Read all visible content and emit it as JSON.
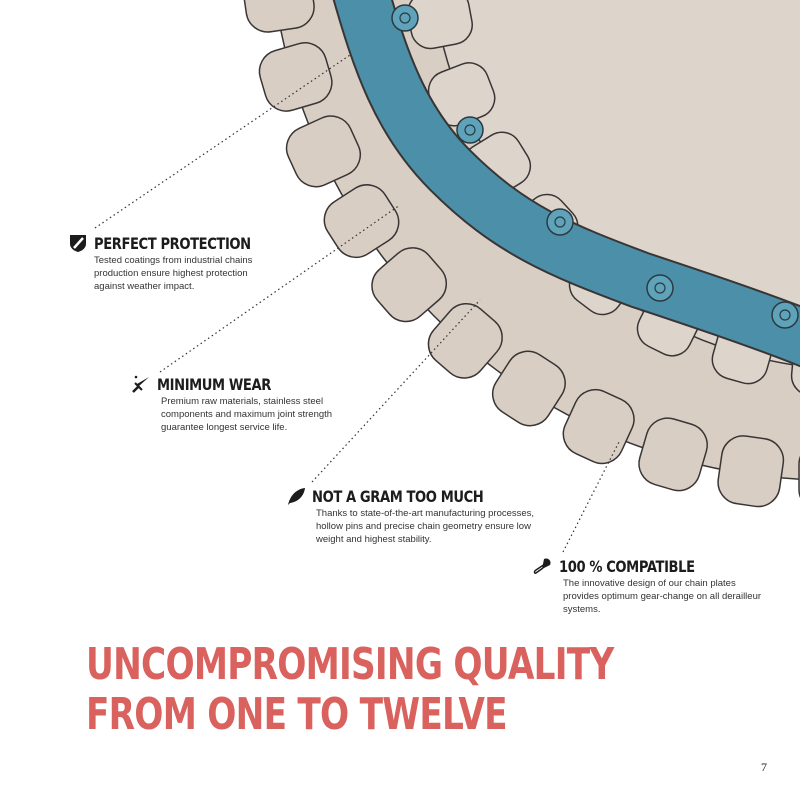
{
  "features": [
    {
      "title": "PERFECT PROTECTION",
      "text": "Tested coatings from industrial chains production ensure highest protection against weather impact.",
      "icon": "shield-icon"
    },
    {
      "title": "MINIMUM WEAR",
      "text": "Premium raw materials, stainless steel components and maximum joint strength guarantee longest service life.",
      "icon": "sword-icon"
    },
    {
      "title": "NOT A GRAM TOO MUCH",
      "text": "Thanks to state-of-the-art manufacturing processes, hollow pins and precise chain geometry ensure low weight and highest stability.",
      "icon": "feather-icon"
    },
    {
      "title": "100 % COMPATIBLE",
      "text": "The innovative design of our chain plates provides optimum gear-change on all derailleur systems.",
      "icon": "safety-pin-icon"
    }
  ],
  "headline": {
    "line1": "UNCOMPROMISING QUALITY",
    "line2": "FROM ONE TO TWELVE"
  },
  "page_number": "7",
  "colors": {
    "gear": "#d8cec4",
    "chain": "#4b8fa9",
    "headline": "#d9625e",
    "outline": "#3a3535"
  }
}
